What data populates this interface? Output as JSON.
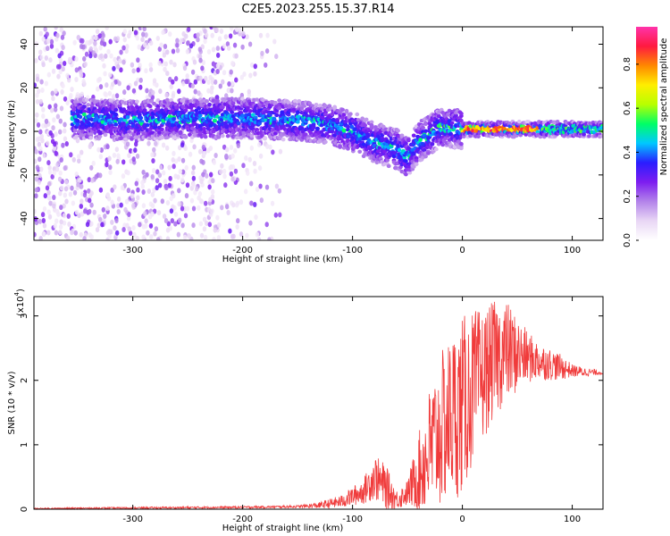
{
  "title": "C2E5.2023.255.15.37.R14",
  "chart_data": [
    {
      "type": "heatmap",
      "xlabel": "Height of straight line (km)",
      "ylabel": "Frequency (Hz)",
      "xlim": [
        -390,
        128
      ],
      "ylim": [
        -50,
        48
      ],
      "x_ticks": [
        -300,
        -200,
        -100,
        0,
        100
      ],
      "y_ticks": [
        40,
        20,
        0,
        -20,
        -40
      ],
      "colorbar": {
        "label": "Normalized spectral amplitude",
        "range": [
          0,
          0.97
        ],
        "ticks": [
          0.0,
          0.2,
          0.4,
          0.6,
          0.8
        ],
        "colormap": [
          "#ffffff",
          "#e9d7f5",
          "#b383ea",
          "#7d1df0",
          "#2a1dff",
          "#00c8ff",
          "#00ff66",
          "#b8ff00",
          "#ffee00",
          "#ff8800",
          "#ff1a40",
          "#ff33aa"
        ]
      },
      "ridge": {
        "x": [
          -355,
          -300,
          -250,
          -200,
          -150,
          -120,
          -100,
          -80,
          -60,
          -50,
          -40,
          -20,
          0,
          30,
          60,
          90,
          128
        ],
        "y": [
          6,
          5,
          6,
          6,
          5,
          3,
          0,
          -5,
          -8,
          -12,
          -5,
          2,
          1,
          1,
          1,
          1,
          1
        ]
      },
      "noise_x_range": [
        -390,
        -160
      ],
      "peak_x_range": [
        0,
        70
      ]
    },
    {
      "type": "line",
      "xlabel": "Height of straight line (km)",
      "ylabel": "SNR (10 * v/v)",
      "y_exponent": "(x10",
      "y_exponent_power": "4",
      "xlim": [
        -390,
        128
      ],
      "ylim": [
        0,
        3.3
      ],
      "x_ticks": [
        -300,
        -200,
        -100,
        0,
        100
      ],
      "y_ticks": [
        0,
        1,
        2,
        3
      ],
      "line_color": "#f03b3b",
      "series": [
        {
          "x": [
            -390,
            -300,
            -200,
            -150,
            -130,
            -110,
            -100,
            -90,
            -80,
            -70,
            -60,
            -50,
            -40,
            -30,
            -20,
            -10,
            0,
            10,
            20,
            30,
            40,
            50,
            60,
            70,
            80,
            90,
            100,
            110,
            128
          ],
          "y": [
            0.01,
            0.02,
            0.03,
            0.04,
            0.06,
            0.12,
            0.2,
            0.28,
            0.5,
            0.35,
            0.15,
            0.25,
            0.55,
            0.9,
            1.2,
            1.45,
            1.6,
            1.9,
            2.1,
            2.35,
            2.45,
            2.4,
            2.35,
            2.3,
            2.25,
            2.2,
            2.15,
            2.13,
            2.12
          ]
        }
      ],
      "noise_envelope": {
        "x": [
          -390,
          -150,
          -130,
          -110,
          -100,
          -90,
          -80,
          -70,
          -60,
          -50,
          -40,
          -30,
          -20,
          -10,
          0,
          10,
          20,
          30,
          40,
          50,
          60,
          70,
          80,
          90,
          100,
          128
        ],
        "amp": [
          0.01,
          0.02,
          0.05,
          0.1,
          0.15,
          0.2,
          0.35,
          0.35,
          0.15,
          0.2,
          0.6,
          1.0,
          1.2,
          1.3,
          1.4,
          1.2,
          1.0,
          0.9,
          0.8,
          0.6,
          0.4,
          0.3,
          0.25,
          0.2,
          0.1,
          0.03
        ]
      }
    }
  ]
}
